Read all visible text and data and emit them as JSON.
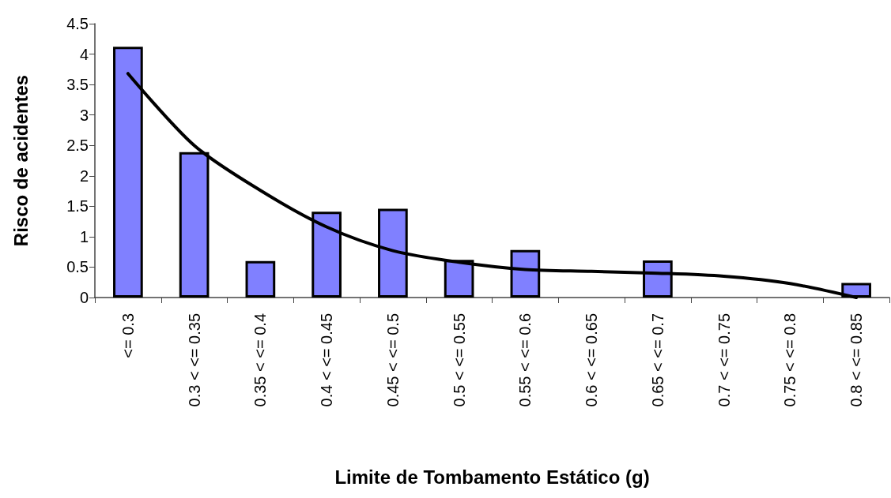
{
  "chart_data": {
    "type": "bar",
    "xlabel": "Limite de Tombamento Estático (g)",
    "ylabel": "Risco de acidentes",
    "categories": [
      "<= 0.3",
      "0.3 < <= 0.35",
      "0.35 < <= 0.4",
      "0.4 < <= 0.45",
      "0.45 < <= 0.5",
      "0.5 < <= 0.55",
      "0.55 < <= 0.6",
      "0.6 < <= 0.65",
      "0.65 < <= 0.7",
      "0.7 < <= 0.75",
      "0.75 < <= 0.8",
      "0.8 < <= 0.85"
    ],
    "series": [
      {
        "color": "#8080ff",
        "values": [
          4.12,
          2.39,
          0.6,
          1.41,
          1.46,
          0.62,
          0.78,
          null,
          0.61,
          null,
          null,
          0.24
        ]
      },
      {
        "type": "line",
        "color": "#000000",
        "marker": "none",
        "line_style": "solid",
        "x": [
          "<= 0.3",
          "0.3 < <= 0.35",
          "0.35 < <= 0.4",
          "0.4 < <= 0.45",
          "0.45 < <= 0.5",
          "0.5 < <= 0.55",
          "0.55 < <= 0.6",
          "0.6 < <= 0.65",
          "0.65 < <= 0.7",
          "0.7 < <= 0.75",
          "0.75 < <= 0.8",
          "0.8 < <= 0.85"
        ],
        "values": [
          3.68,
          2.5,
          1.76,
          1.16,
          0.77,
          0.58,
          0.46,
          0.43,
          0.4,
          0.35,
          0.23,
          0
        ]
      }
    ],
    "ylim": [
      0,
      4.5
    ],
    "yticks": [
      0,
      0.5,
      1,
      1.5,
      2,
      2.5,
      3,
      3.5,
      4,
      4.5
    ],
    "grid": false
  }
}
